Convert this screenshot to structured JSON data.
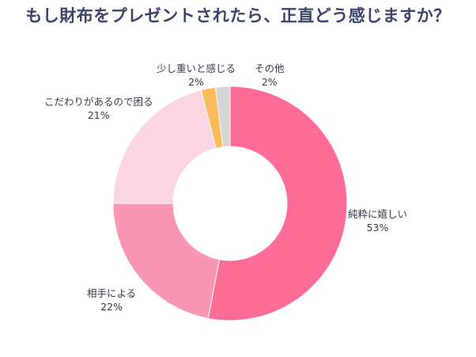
{
  "chart_data": {
    "type": "pie",
    "style": "donut",
    "title": "もし財布をプレゼントされたら、正直どう感じますか？",
    "slices": [
      {
        "name": "純粋に嬉しい",
        "value": 53,
        "value_label": "53%",
        "color": "#fd6b97"
      },
      {
        "name": "相手による",
        "value": 22,
        "value_label": "22%",
        "color": "#f896b4"
      },
      {
        "name": "こだわりがあるので困る",
        "value": 21,
        "value_label": "21%",
        "color": "#fcd5e3"
      },
      {
        "name": "少し重いと感じる",
        "value": 2,
        "value_label": "2%",
        "color": "#fdbb5d"
      },
      {
        "name": "その他",
        "value": 2,
        "value_label": "2%",
        "color": "#d6d6d6"
      }
    ]
  }
}
